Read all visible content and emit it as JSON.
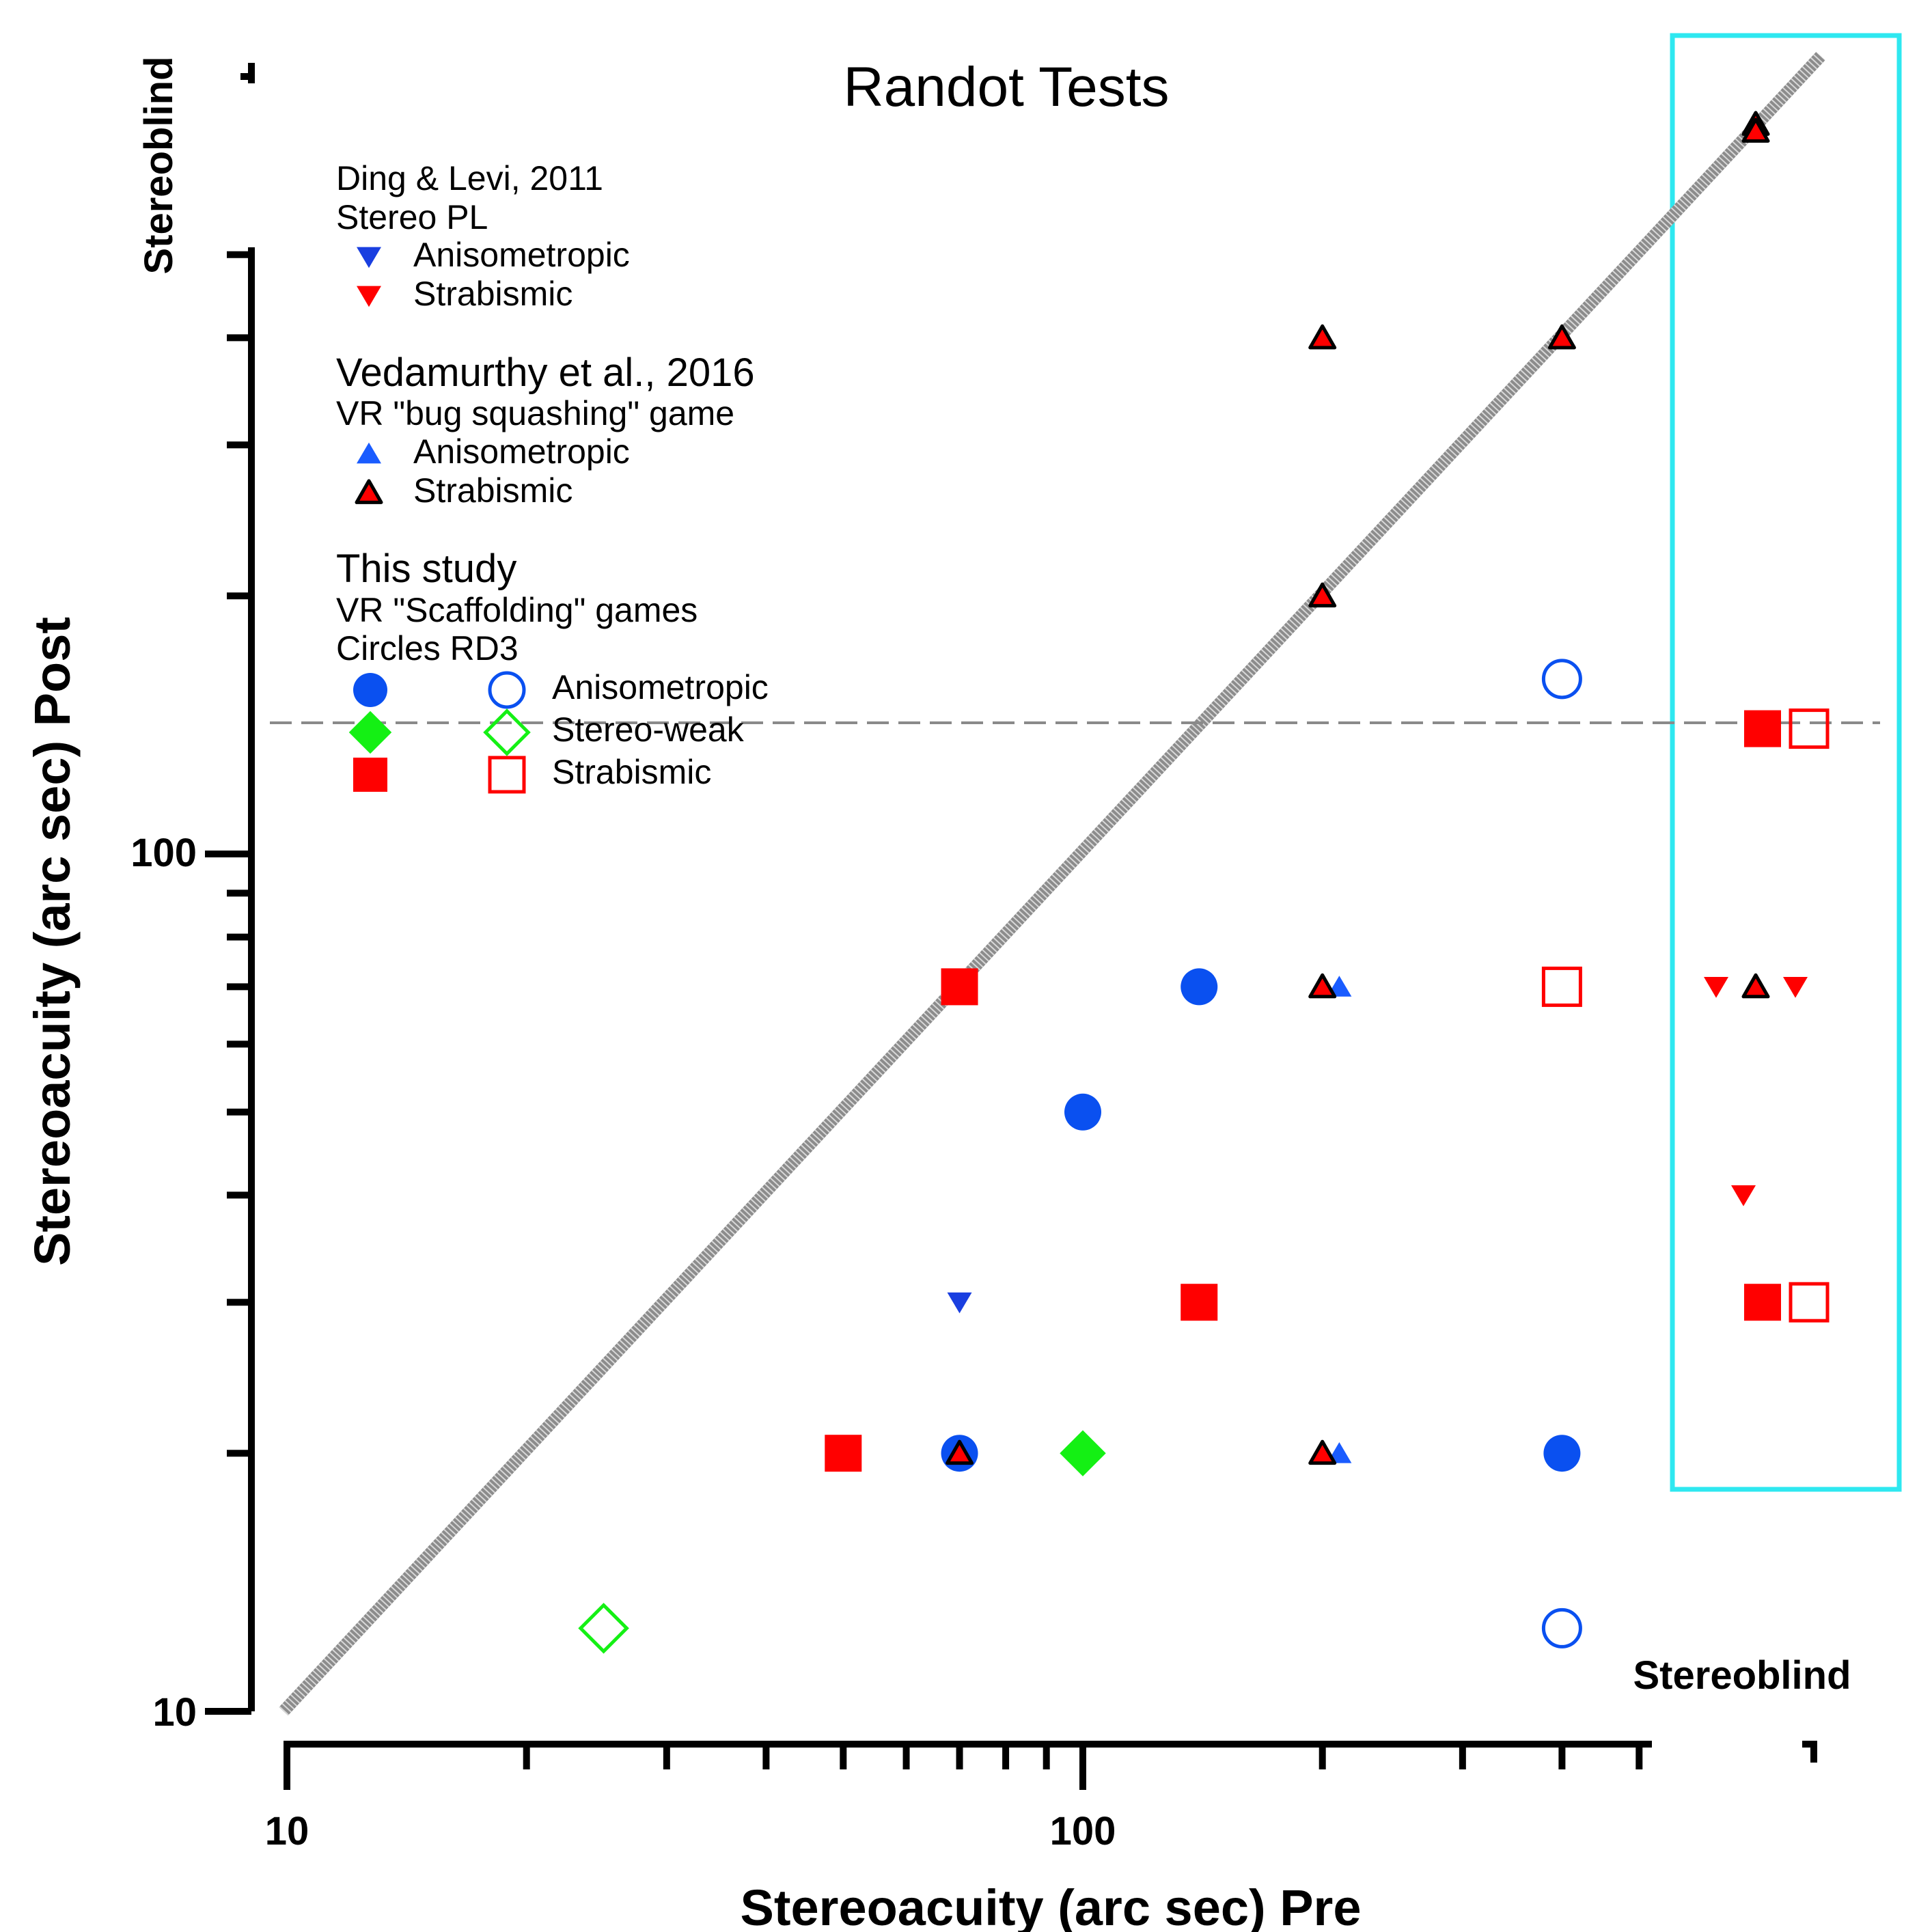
{
  "chart_data": {
    "type": "scatter",
    "title": "Randot Tests",
    "xlabel": "Stereoacuity (arc sec) Pre",
    "ylabel": "Stereoacuity (arc sec) Post",
    "x_scale": "log",
    "y_scale": "log",
    "xlim": [
      10,
      1000
    ],
    "ylim": [
      10,
      500
    ],
    "x_tick_labels": [
      "10",
      "100"
    ],
    "y_tick_labels": [
      "10",
      "100"
    ],
    "stereoblind_label": "Stereoblind",
    "identity_line": true,
    "dashed_reference_y": 140,
    "highlight_box": {
      "color": "#2ee8f0",
      "label": "Stereoblind region"
    },
    "legend": {
      "groups": [
        {
          "heading": "Ding & Levi, 2011",
          "subheading": "Stereo PL",
          "entries": [
            {
              "label": "Anisometropic",
              "marker": "triangle-down",
              "color": "#1a3fe0"
            },
            {
              "label": "Strabismic",
              "marker": "triangle-down",
              "color": "#ff0000"
            }
          ]
        },
        {
          "heading": "Vedamurthy et al., 2016",
          "subheading": "VR \"bug squashing\" game",
          "entries": [
            {
              "label": "Anisometropic",
              "marker": "triangle-up",
              "color": "#1a5cff"
            },
            {
              "label": "Strabismic",
              "marker": "triangle-up-outlined",
              "color": "#ff0000"
            }
          ]
        },
        {
          "heading": "This study",
          "subheading": "VR \"Scaffolding\" games",
          "column_headers": "Circles  RD3",
          "entries": [
            {
              "label": "Anisometropic",
              "marker": "circle",
              "color": "#0a50f0"
            },
            {
              "label": "Stereo-weak",
              "marker": "diamond",
              "color": "#14f014"
            },
            {
              "label": "Strabismic",
              "marker": "square",
              "color": "#ff0000"
            }
          ]
        }
      ]
    },
    "series": [
      {
        "group": "Ding & Levi, 2011",
        "name": "Anisometropic",
        "marker": "triangle-down",
        "color": "#1a3fe0",
        "filled": true,
        "points": [
          [
            70,
            30
          ]
        ]
      },
      {
        "group": "Ding & Levi, 2011",
        "name": "Strabismic",
        "marker": "triangle-down",
        "color": "#ff0000",
        "filled": true,
        "points": [
          [
            "SB",
            70
          ],
          [
            "SB",
            70
          ],
          [
            "SB",
            40
          ]
        ]
      },
      {
        "group": "Vedamurthy et al., 2016",
        "name": "Anisometropic",
        "marker": "triangle-up",
        "color": "#1a5cff",
        "filled": true,
        "points": [
          [
            210,
            70
          ],
          [
            210,
            20
          ]
        ]
      },
      {
        "group": "Vedamurthy et al., 2016",
        "name": "Strabismic",
        "marker": "triangle-up-outlined",
        "color": "#ff0000",
        "filled": true,
        "points": [
          [
            200,
            400
          ],
          [
            400,
            400
          ],
          [
            200,
            200
          ],
          [
            200,
            70
          ],
          [
            200,
            20
          ],
          [
            70,
            20
          ],
          [
            "SB",
            "SB"
          ],
          [
            "SB",
            "SB"
          ],
          [
            "SB",
            70
          ]
        ]
      },
      {
        "group": "This study",
        "name": "Anisometropic (Circles)",
        "marker": "circle",
        "color": "#0a50f0",
        "filled": true,
        "points": [
          [
            140,
            70
          ],
          [
            100,
            50
          ],
          [
            70,
            20
          ],
          [
            400,
            20
          ]
        ]
      },
      {
        "group": "This study",
        "name": "Anisometropic (RD3)",
        "marker": "circle",
        "color": "#0a50f0",
        "filled": false,
        "points": [
          [
            400,
            160
          ],
          [
            400,
            12.5
          ]
        ]
      },
      {
        "group": "This study",
        "name": "Stereo-weak (Circles)",
        "marker": "diamond",
        "color": "#14f014",
        "filled": true,
        "points": [
          [
            100,
            20
          ]
        ]
      },
      {
        "group": "This study",
        "name": "Stereo-weak (RD3)",
        "marker": "diamond",
        "color": "#14f014",
        "filled": false,
        "points": [
          [
            25,
            12.5
          ]
        ]
      },
      {
        "group": "This study",
        "name": "Strabismic (Circles)",
        "marker": "square",
        "color": "#ff0000",
        "filled": true,
        "points": [
          [
            70,
            70
          ],
          [
            140,
            30
          ],
          [
            50,
            20
          ],
          [
            "SB",
            140
          ],
          [
            "SB",
            30
          ]
        ]
      },
      {
        "group": "This study",
        "name": "Strabismic (RD3)",
        "marker": "square",
        "color": "#ff0000",
        "filled": false,
        "points": [
          [
            400,
            70
          ],
          [
            "SB",
            140
          ],
          [
            "SB",
            30
          ]
        ]
      }
    ]
  }
}
